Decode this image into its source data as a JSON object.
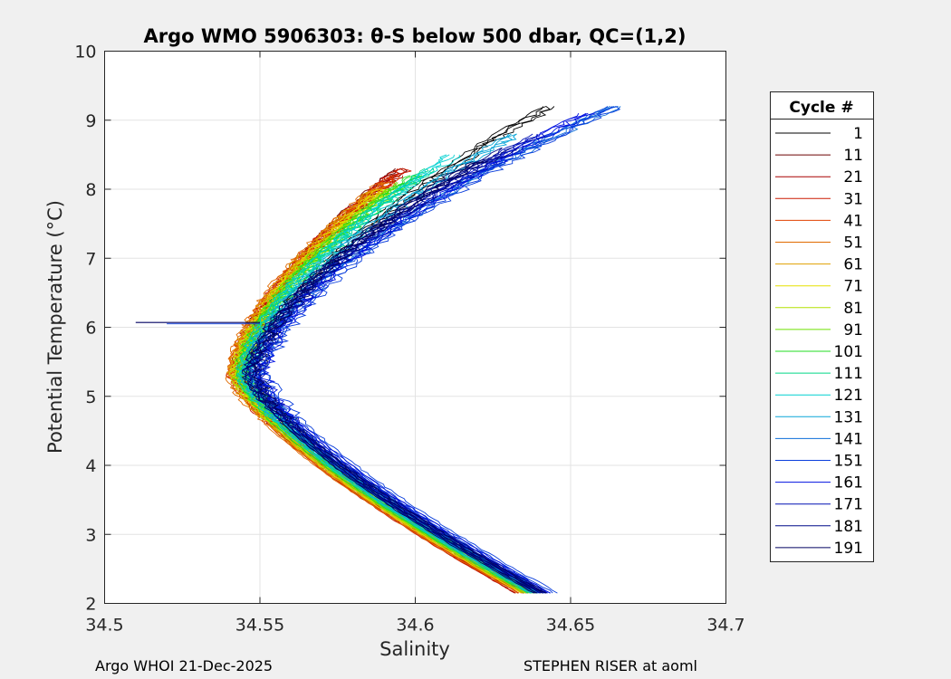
{
  "chart_data": {
    "type": "line",
    "title": "Argo WMO 5906303: θ-S below 500 dbar,  QC=(1,2)",
    "xlabel": "Salinity",
    "ylabel": "Potential Temperature (°C)",
    "xlim": [
      34.5,
      34.7
    ],
    "ylim": [
      2,
      10
    ],
    "xticks": [
      34.5,
      34.55,
      34.6,
      34.65,
      34.7
    ],
    "xtick_labels": [
      "34.5",
      "34.55",
      "34.6",
      "34.65",
      "34.7"
    ],
    "yticks": [
      2,
      3,
      4,
      5,
      6,
      7,
      8,
      9,
      10
    ],
    "ytick_labels": [
      "2",
      "3",
      "4",
      "5",
      "6",
      "7",
      "8",
      "9",
      "10"
    ],
    "grid": true,
    "legend_title": "Cycle #",
    "legend_position": "right-outside",
    "series": [
      {
        "name": "1",
        "color": "#000000",
        "T_top": 9.2,
        "S_top": 34.643,
        "S_min": 34.548,
        "S_deep": 34.64
      },
      {
        "name": "11",
        "color": "#6b0000",
        "T_top": 8.3,
        "S_top": 34.595,
        "S_min": 34.543,
        "S_deep": 34.634
      },
      {
        "name": "21",
        "color": "#a80000",
        "T_top": 8.2,
        "S_top": 34.593,
        "S_min": 34.543,
        "S_deep": 34.634
      },
      {
        "name": "31",
        "color": "#cc1a00",
        "T_top": 8.3,
        "S_top": 34.596,
        "S_min": 34.542,
        "S_deep": 34.634
      },
      {
        "name": "41",
        "color": "#e04000",
        "T_top": 8.2,
        "S_top": 34.594,
        "S_min": 34.542,
        "S_deep": 34.635
      },
      {
        "name": "51",
        "color": "#e06a00",
        "T_top": 8.1,
        "S_top": 34.59,
        "S_min": 34.541,
        "S_deep": 34.635
      },
      {
        "name": "61",
        "color": "#e0a000",
        "T_top": 8.0,
        "S_top": 34.588,
        "S_min": 34.542,
        "S_deep": 34.636
      },
      {
        "name": "71",
        "color": "#e6e000",
        "T_top": 8.0,
        "S_top": 34.59,
        "S_min": 34.543,
        "S_deep": 34.636
      },
      {
        "name": "81",
        "color": "#b4e000",
        "T_top": 8.0,
        "S_top": 34.592,
        "S_min": 34.543,
        "S_deep": 34.637
      },
      {
        "name": "91",
        "color": "#6ee000",
        "T_top": 8.1,
        "S_top": 34.596,
        "S_min": 34.544,
        "S_deep": 34.637
      },
      {
        "name": "101",
        "color": "#22dc22",
        "T_top": 8.2,
        "S_top": 34.6,
        "S_min": 34.544,
        "S_deep": 34.638
      },
      {
        "name": "111",
        "color": "#00d888",
        "T_top": 8.3,
        "S_top": 34.605,
        "S_min": 34.545,
        "S_deep": 34.638
      },
      {
        "name": "121",
        "color": "#00d0d0",
        "T_top": 8.5,
        "S_top": 34.612,
        "S_min": 34.545,
        "S_deep": 34.639
      },
      {
        "name": "131",
        "color": "#0aa6d8",
        "T_top": 8.8,
        "S_top": 34.632,
        "S_min": 34.546,
        "S_deep": 34.639
      },
      {
        "name": "141",
        "color": "#0c6ed8",
        "T_top": 9.2,
        "S_top": 34.664,
        "S_min": 34.548,
        "S_deep": 34.64
      },
      {
        "name": "151",
        "color": "#0a3edc",
        "T_top": 9.2,
        "S_top": 34.664,
        "S_min": 34.551,
        "S_deep": 34.644
      },
      {
        "name": "161",
        "color": "#0010e0",
        "T_top": 9.1,
        "S_top": 34.655,
        "S_min": 34.55,
        "S_deep": 34.642
      },
      {
        "name": "171",
        "color": "#0010b4",
        "T_top": 8.8,
        "S_top": 34.64,
        "S_min": 34.548,
        "S_deep": 34.641
      },
      {
        "name": "181",
        "color": "#000a88",
        "T_top": 8.6,
        "S_top": 34.63,
        "S_min": 34.547,
        "S_deep": 34.641
      },
      {
        "name": "191",
        "color": "#000060",
        "T_top": 8.4,
        "S_top": 34.62,
        "S_min": 34.547,
        "S_deep": 34.64
      }
    ],
    "annotations": [
      {
        "type": "spike",
        "T": 6.07,
        "S_from": 34.51,
        "S_to": 34.55
      }
    ]
  },
  "footer": {
    "left": "Argo WHOI 21-Dec-2025",
    "right": "STEPHEN RISER at aoml"
  }
}
